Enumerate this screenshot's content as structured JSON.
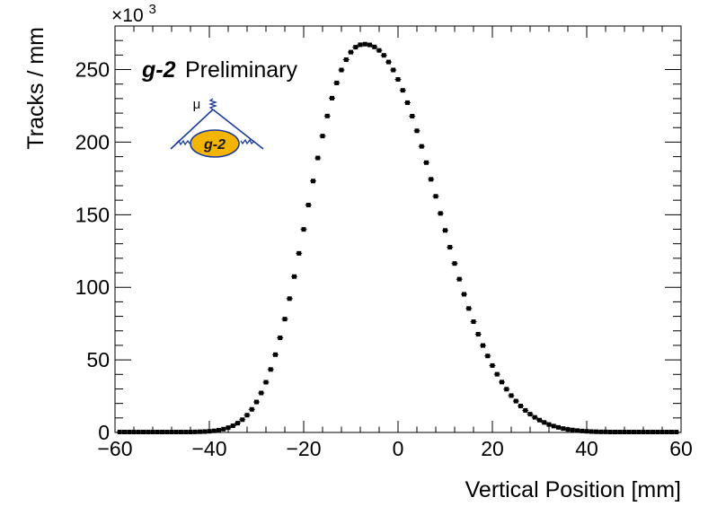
{
  "chart_data": {
    "type": "scatter",
    "title": "",
    "xlabel": "Vertical Position [mm]",
    "ylabel": "Tracks / mm",
    "y_multiplier_label": "×10",
    "y_multiplier_exponent": "3",
    "annotation_brand": "g-2",
    "annotation_text": "Preliminary",
    "logo_text": "g-2",
    "logo_symbol": "μ",
    "logo_color": "#f5b400",
    "logo_line_color": "#1a3a9a",
    "marker_color": "#000000",
    "xlim": [
      -60,
      60
    ],
    "ylim": [
      0,
      280
    ],
    "xticks": [
      -60,
      -40,
      -20,
      0,
      20,
      40,
      60
    ],
    "yticks": [
      0,
      50,
      100,
      150,
      200,
      250
    ],
    "xtick_labels": [
      "−60",
      "−40",
      "−20",
      "0",
      "20",
      "40",
      "60"
    ],
    "ytick_labels": [
      "0",
      "50",
      "100",
      "150",
      "200",
      "250"
    ],
    "grid": false,
    "legend": "none",
    "series": [
      {
        "x": [
          -59,
          -58,
          -57,
          -56,
          -55,
          -54,
          -53,
          -52,
          -51,
          -50,
          -49,
          -48,
          -47,
          -46,
          -45,
          -44,
          -43,
          -42,
          -41,
          -40,
          -39,
          -38,
          -37,
          -36,
          -35,
          -34,
          -33,
          -32,
          -31,
          -30,
          -29,
          -28,
          -27,
          -26,
          -25,
          -24,
          -23,
          -22,
          -21,
          -20,
          -19,
          -18,
          -17,
          -16,
          -15,
          -14,
          -13,
          -12,
          -11,
          -10,
          -9,
          -8,
          -7,
          -6,
          -5,
          -4,
          -3,
          -2,
          -1,
          0,
          1,
          2,
          3,
          4,
          5,
          6,
          7,
          8,
          9,
          10,
          11,
          12,
          13,
          14,
          15,
          16,
          17,
          18,
          19,
          20,
          21,
          22,
          23,
          24,
          25,
          26,
          27,
          28,
          29,
          30,
          31,
          32,
          33,
          34,
          35,
          36,
          37,
          38,
          39,
          40,
          41,
          42,
          43,
          44,
          45,
          46,
          47,
          48,
          49,
          50,
          51,
          52,
          53,
          54,
          55,
          56,
          57,
          58,
          59
        ],
        "y": [
          0.3,
          0.3,
          0.3,
          0.3,
          0.3,
          0.3,
          0.3,
          0.3,
          0.3,
          0.3,
          0.3,
          0.3,
          0.3,
          0.3,
          0.3,
          0.3,
          0.4,
          0.5,
          0.6,
          0.8,
          1.1,
          1.6,
          2.3,
          3.3,
          4.6,
          6.4,
          8.8,
          11.9,
          15.9,
          21.0,
          27.2,
          34.6,
          43.4,
          53.6,
          65.2,
          78.1,
          92.2,
          107.4,
          123.4,
          139.9,
          156.7,
          173.2,
          189.1,
          204.2,
          218.0,
          230.3,
          240.8,
          249.7,
          256.8,
          262.0,
          265.4,
          267.1,
          267.5,
          267.0,
          265.6,
          263.2,
          259.8,
          255.2,
          249.7,
          243.2,
          235.7,
          227.2,
          217.9,
          207.8,
          197.1,
          185.9,
          174.4,
          162.7,
          150.9,
          139.2,
          127.6,
          116.4,
          105.6,
          95.2,
          85.4,
          76.3,
          67.7,
          59.9,
          52.7,
          46.1,
          40.1,
          34.7,
          29.8,
          25.4,
          21.6,
          18.2,
          15.2,
          12.6,
          10.4,
          8.5,
          6.9,
          5.5,
          4.4,
          3.5,
          2.7,
          2.1,
          1.7,
          1.3,
          1.0,
          0.8,
          0.6,
          0.5,
          0.4,
          0.4,
          0.3,
          0.3,
          0.3,
          0.3,
          0.3,
          0.3,
          0.3,
          0.3,
          0.3,
          0.3,
          0.3,
          0.3,
          0.3,
          0.3,
          0.3
        ]
      }
    ]
  }
}
